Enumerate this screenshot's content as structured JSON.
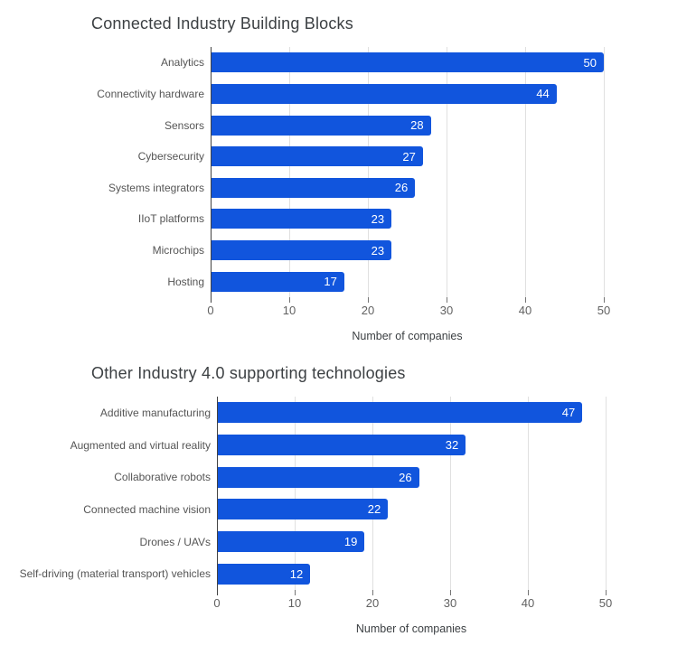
{
  "colors": {
    "bar": "#1155dd",
    "grid": "#e0e0e0",
    "axis_line": "#424242",
    "tick_mark": "#757575",
    "title_text": "#3c4043",
    "category_text": "#555555",
    "tick_text": "#616161",
    "value_text": "#ffffff",
    "background": "#ffffff"
  },
  "chart_data": [
    {
      "type": "bar",
      "orientation": "horizontal",
      "title": "Connected Industry Building Blocks",
      "categories": [
        "Analytics",
        "Connectivity hardware",
        "Sensors",
        "Cybersecurity",
        "Systems integrators",
        "IIoT platforms",
        "Microchips",
        "Hosting"
      ],
      "values": [
        50,
        44,
        28,
        27,
        26,
        23,
        23,
        17
      ],
      "xlabel": "Number of companies",
      "ylabel": "",
      "xlim": [
        0,
        50
      ],
      "xticks": [
        0,
        10,
        20,
        30,
        40,
        50
      ],
      "grid": true,
      "legend": false,
      "value_labels": "inside-end-white"
    },
    {
      "type": "bar",
      "orientation": "horizontal",
      "title": "Other Industry 4.0 supporting technologies",
      "categories": [
        "Additive manufacturing",
        "Augmented and virtual reality",
        "Collaborative robots",
        "Connected machine vision",
        "Drones / UAVs",
        "Self-driving (material transport) vehicles"
      ],
      "values": [
        47,
        32,
        26,
        22,
        19,
        12
      ],
      "xlabel": "Number of companies",
      "ylabel": "",
      "xlim": [
        0,
        50
      ],
      "xticks": [
        0,
        10,
        20,
        30,
        40,
        50
      ],
      "grid": true,
      "legend": false,
      "value_labels": "inside-end-white"
    }
  ]
}
